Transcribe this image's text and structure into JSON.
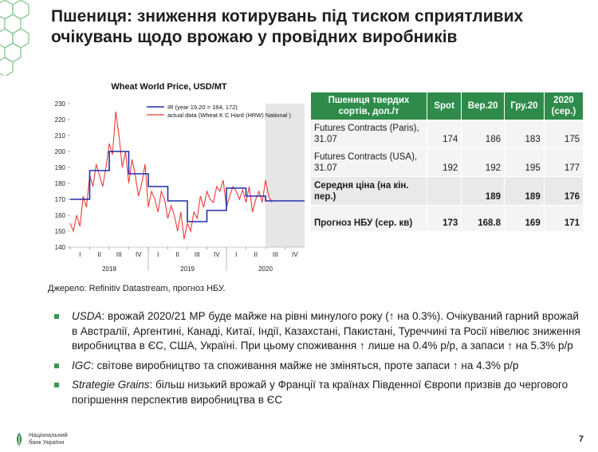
{
  "title": "Пшениця: зниження котирувань під тиском сприятливих очікувань щодо врожаю у провідних виробників",
  "source_note": "Джерело: Refinitiv Datastream, прогноз НБУ.",
  "colors": {
    "accent": "#2e8b4a",
    "ir_line": "#1f2fa8",
    "actual_line": "#ee3b3b",
    "forecast_shade": "#e6e6e6"
  },
  "chart_data": {
    "type": "line",
    "title": "Wheat World Price, USD/MT",
    "ylim": [
      140,
      230
    ],
    "yticks": [
      140,
      150,
      160,
      170,
      180,
      190,
      200,
      210,
      220,
      230
    ],
    "quarters": [
      "I",
      "II",
      "III",
      "IV",
      "I",
      "II",
      "III",
      "IV",
      "I",
      "II",
      "III",
      "IV"
    ],
    "years": [
      "2018",
      "2019",
      "2020"
    ],
    "forecast_from_quarter": 11,
    "series": [
      {
        "name": "IR (year 19,20 = 164, 172)",
        "step": true,
        "quarter_values": [
          170,
          188,
          200,
          186,
          178,
          169,
          156,
          163,
          177,
          172,
          169,
          169
        ]
      },
      {
        "name": "actual data (Wheat K C Hard (HRW) National )",
        "x_months": [
          0,
          0.5,
          1,
          1.5,
          2,
          2.5,
          3,
          3.5,
          4,
          4.5,
          5,
          5.5,
          6,
          6.5,
          7,
          7.5,
          8,
          8.5,
          9,
          9.5,
          10,
          10.5,
          11,
          11.5,
          12,
          12.5,
          13,
          13.5,
          14,
          14.5,
          15,
          15.5,
          16,
          16.5,
          17,
          17.5,
          18,
          18.5,
          19,
          19.5,
          20,
          20.5,
          21,
          21.5,
          22,
          22.5,
          23,
          23.5,
          24,
          24.5,
          25,
          25.5,
          26,
          26.5,
          27,
          27.5,
          28,
          28.5,
          29,
          29.5,
          30,
          30.5,
          31
        ],
        "values": [
          155,
          150,
          160,
          153,
          172,
          165,
          185,
          178,
          192,
          185,
          178,
          190,
          205,
          198,
          225,
          210,
          190,
          200,
          180,
          195,
          185,
          172,
          180,
          192,
          165,
          175,
          170,
          162,
          175,
          170,
          158,
          166,
          160,
          150,
          162,
          145,
          155,
          150,
          162,
          158,
          172,
          165,
          175,
          170,
          168,
          178,
          175,
          182,
          165,
          172,
          178,
          175,
          170,
          176,
          168,
          178,
          162,
          170,
          175,
          168,
          182,
          172,
          168
        ]
      }
    ]
  },
  "table": {
    "headers": [
      "Пшениця твердих сортів, дол./т",
      "Spot",
      "Вер.20",
      "Гру.20",
      "2020 (сер.)"
    ],
    "rows": [
      {
        "label": "Futures Contracts (Paris), 31.07",
        "values": [
          "174",
          "186",
          "183",
          "175"
        ]
      },
      {
        "label": "Futures Contracts (USA), 31.07",
        "values": [
          "192",
          "192",
          "195",
          "177"
        ]
      },
      {
        "label": "Середня ціна (на кін. пер.)",
        "values": [
          "",
          "189",
          "189",
          "176"
        ]
      },
      {
        "label": "Прогноз НБУ (сер. кв)",
        "values": [
          "173",
          "168.8",
          "169",
          "171"
        ]
      }
    ]
  },
  "bullets": [
    {
      "src": "USDA",
      "text": ": врожай 2020/21 МР буде майже на рівні минулого року (↑ на 0.3%). Очікуваний гарний врожай в Австралії, Аргентині, Канаді, Китаї, Індії, Казахстані, Пакистані, Туреччині та Росії нівелює зниження виробництва в ЄС, США, Україні. При цьому споживання ↑ лише на 0.4% р/р, а запаси ↑ на 5.3% р/р"
    },
    {
      "src": "IGC",
      "text": ": світове виробництво та споживання майже не зміняться, проте запаси ↑ на 4.3% р/р"
    },
    {
      "src": "Strategie Grains",
      "text": ": більш низький врожай у Франції та країнах Південної Європи призвів до чергового погіршення перспектив виробництва в ЄС"
    }
  ],
  "footer": {
    "bank": "Національний банк України",
    "page": "7"
  }
}
